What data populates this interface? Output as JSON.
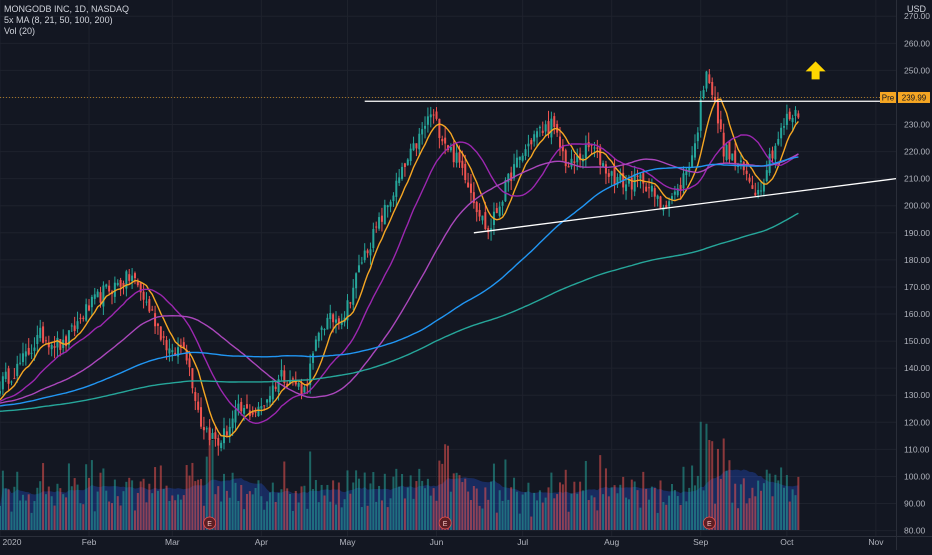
{
  "header": {
    "symbol_line": "MONGODB INC, 1D, NASDAQ",
    "ma_line": "5x MA (8, 21, 50, 100, 200)",
    "vol_line": "Vol (20)",
    "currency": "USD"
  },
  "price_tag": {
    "label": "Pre",
    "value": "239.99"
  },
  "earnings_marker": "E",
  "colors": {
    "background": "#131722",
    "grid": "#1e222d",
    "up": "#26a69a",
    "down": "#ef5350",
    "ma8": "#f5a623",
    "ma21": "#9c27b0",
    "ma50": "#ab47bc",
    "ma100": "#2196f3",
    "ma200": "#26a69a",
    "trendline": "#ffffff",
    "arrow": "#ffd600"
  },
  "chart_data": {
    "type": "candlestick",
    "title": "MONGODB INC, 1D, NASDAQ",
    "y_ticks": [
      80,
      90,
      100,
      110,
      120,
      130,
      140,
      150,
      160,
      170,
      180,
      190,
      200,
      210,
      220,
      230,
      240,
      250,
      260,
      270
    ],
    "ylim": [
      78,
      276
    ],
    "x_ticks": [
      "2020",
      "Feb",
      "Mar",
      "Apr",
      "May",
      "Jun",
      "Jul",
      "Aug",
      "Sep",
      "Oct",
      "Nov"
    ],
    "x_tick_days": [
      0,
      31,
      60,
      91,
      121,
      152,
      182,
      213,
      244,
      274,
      305
    ],
    "xlim": [
      0,
      312
    ],
    "last_day": 278,
    "current_price": 239.99,
    "anchors": [
      [
        0,
        134
      ],
      [
        6,
        140
      ],
      [
        14,
        152
      ],
      [
        22,
        148
      ],
      [
        29,
        160
      ],
      [
        36,
        168
      ],
      [
        46,
        174
      ],
      [
        53,
        160
      ],
      [
        60,
        144
      ],
      [
        64,
        150
      ],
      [
        70,
        120
      ],
      [
        76,
        112
      ],
      [
        83,
        124
      ],
      [
        90,
        124
      ],
      [
        98,
        138
      ],
      [
        106,
        132
      ],
      [
        112,
        156
      ],
      [
        120,
        160
      ],
      [
        126,
        180
      ],
      [
        134,
        198
      ],
      [
        140,
        212
      ],
      [
        146,
        225
      ],
      [
        150,
        234
      ],
      [
        156,
        222
      ],
      [
        162,
        212
      ],
      [
        166,
        200
      ],
      [
        170,
        190
      ],
      [
        178,
        212
      ],
      [
        186,
        226
      ],
      [
        192,
        230
      ],
      [
        198,
        214
      ],
      [
        206,
        222
      ],
      [
        212,
        212
      ],
      [
        218,
        208
      ],
      [
        224,
        210
      ],
      [
        230,
        200
      ],
      [
        236,
        205
      ],
      [
        242,
        222
      ],
      [
        246,
        252
      ],
      [
        252,
        221
      ],
      [
        258,
        214
      ],
      [
        264,
        205
      ],
      [
        268,
        218
      ],
      [
        274,
        232
      ],
      [
        278,
        234
      ]
    ],
    "moving_averages": [
      {
        "name": "MA 8",
        "period": 8
      },
      {
        "name": "MA 21",
        "period": 21
      },
      {
        "name": "MA 50",
        "period": 50
      },
      {
        "name": "MA 100",
        "period": 100
      },
      {
        "name": "MA 200",
        "period": 200
      }
    ],
    "volume_label": "Vol (20)",
    "earnings_days": [
      73,
      155,
      247
    ],
    "annotations": [
      {
        "type": "resistance",
        "from": [
          127,
          238.6
        ],
        "to": [
          312,
          238.6
        ]
      },
      {
        "type": "support",
        "from": [
          165,
          190
        ],
        "to": [
          312,
          210
        ]
      },
      {
        "type": "arrow-up",
        "at": [
          284,
          250
        ]
      }
    ]
  }
}
